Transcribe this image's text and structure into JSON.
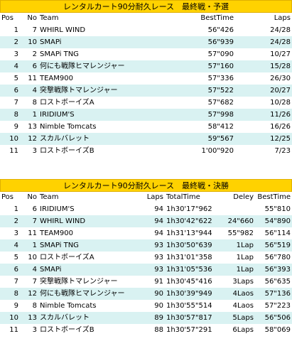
{
  "qualifying": {
    "title": "レンタルカート90分耐久レース　最終戦・予選",
    "headers": {
      "pos": "Pos",
      "no": "No",
      "team": "Team",
      "best": "BestTime",
      "laps": "Laps"
    },
    "rows": [
      {
        "pos": "1",
        "no": "7",
        "team": "WHIRL WIND",
        "best": "56\"426",
        "laps": "24/28"
      },
      {
        "pos": "2",
        "no": "10",
        "team": "SMAPi",
        "best": "56\"939",
        "laps": "24/28"
      },
      {
        "pos": "3",
        "no": "2",
        "team": "SMAPi TNG",
        "best": "57\"090",
        "laps": "10/27"
      },
      {
        "pos": "4",
        "no": "6",
        "team": "何にも戦隊ヒマレンジャー",
        "best": "57\"160",
        "laps": "15/28"
      },
      {
        "pos": "5",
        "no": "11",
        "team": "TEAM900",
        "best": "57\"336",
        "laps": "26/30"
      },
      {
        "pos": "6",
        "no": "4",
        "team": "突撃戦隊トマレンジャー",
        "best": "57\"522",
        "laps": "20/27"
      },
      {
        "pos": "7",
        "no": "8",
        "team": "ロストボーイズA",
        "best": "57\"682",
        "laps": "10/28"
      },
      {
        "pos": "8",
        "no": "1",
        "team": "IRIDIUM'S",
        "best": "57\"998",
        "laps": "11/26"
      },
      {
        "pos": "9",
        "no": "13",
        "team": "Nimble Tomcats",
        "best": "58\"412",
        "laps": "16/26"
      },
      {
        "pos": "10",
        "no": "12",
        "team": "スカルバレット",
        "best": "59\"567",
        "laps": "12/25"
      },
      {
        "pos": "11",
        "no": "3",
        "team": "ロストボーイズB",
        "best": "1'00\"920",
        "laps": "7/23"
      }
    ]
  },
  "final": {
    "title": "レンタルカート90分耐久レース　最終戦・決勝",
    "headers": {
      "pos": "Pos",
      "no": "No",
      "team": "Team",
      "laps": "Laps",
      "total": "TotalTime",
      "delay": "Deley",
      "best": "BestTime"
    },
    "rows": [
      {
        "pos": "1",
        "no": "6",
        "team": "IRIDIUM'S",
        "laps": "94",
        "total": "1h30'17\"962",
        "delay": "",
        "best": "55\"810"
      },
      {
        "pos": "2",
        "no": "7",
        "team": "WHIRL WIND",
        "laps": "94",
        "total": "1h30'42\"622",
        "delay": "24\"660",
        "best": "54\"890"
      },
      {
        "pos": "3",
        "no": "11",
        "team": "TEAM900",
        "laps": "94",
        "total": "1h31'13\"944",
        "delay": "55\"982",
        "best": "56\"114"
      },
      {
        "pos": "4",
        "no": "1",
        "team": "SMAPi TNG",
        "laps": "93",
        "total": "1h30'50\"639",
        "delay": "1Lap",
        "best": "56\"519"
      },
      {
        "pos": "5",
        "no": "10",
        "team": "ロストボーイズA",
        "laps": "93",
        "total": "1h31'01\"358",
        "delay": "1Lap",
        "best": "56\"780"
      },
      {
        "pos": "6",
        "no": "4",
        "team": "SMAPi",
        "laps": "93",
        "total": "1h31'05\"536",
        "delay": "1Lap",
        "best": "56\"393"
      },
      {
        "pos": "7",
        "no": "7",
        "team": "突撃戦隊トマレンジャー",
        "laps": "91",
        "total": "1h30'45\"416",
        "delay": "3Laps",
        "best": "56\"635"
      },
      {
        "pos": "8",
        "no": "12",
        "team": "何にも戦隊ヒマレンジャー",
        "laps": "90",
        "total": "1h30'39\"949",
        "delay": "4Laos",
        "best": "57\"136"
      },
      {
        "pos": "9",
        "no": "8",
        "team": "Nimble Tomcats",
        "laps": "90",
        "total": "1h30'55\"514",
        "delay": "4Laos",
        "best": "57\"223"
      },
      {
        "pos": "10",
        "no": "13",
        "team": "スカルバレット",
        "laps": "89",
        "total": "1h30'57\"817",
        "delay": "5Laps",
        "best": "56\"506"
      },
      {
        "pos": "11",
        "no": "3",
        "team": "ロストボーイズB",
        "laps": "88",
        "total": "1h30'57\"291",
        "delay": "6Laps",
        "best": "58\"069"
      }
    ]
  }
}
